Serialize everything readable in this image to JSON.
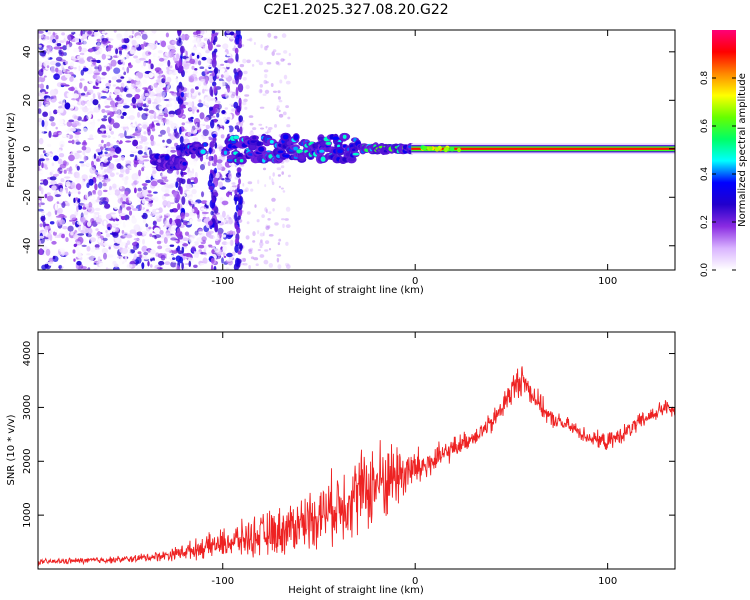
{
  "title": "C2E1.2025.327.08.20.G22",
  "colors": {
    "snr_line": "#ee2222",
    "colorbar_stops": [
      "#ffffff",
      "#d9b3ff",
      "#8a2be2",
      "#2200cc",
      "#0000ff",
      "#00ffff",
      "#00ff66",
      "#66ff00",
      "#ffff00",
      "#ff8800",
      "#ff0000",
      "#ff0077"
    ]
  },
  "chart_data": [
    {
      "type": "heatmap",
      "name": "spectrogram",
      "title": "C2E1.2025.327.08.20.G22",
      "xlabel": "Height of straight line (km)",
      "ylabel": "Frequency (Hz)",
      "xlim": [
        -196,
        135
      ],
      "ylim": [
        -50,
        49
      ],
      "xticks": [
        -100,
        0,
        100
      ],
      "xtick_labels": [
        "-100",
        "0",
        "100"
      ],
      "yticks": [
        -40,
        -20,
        0,
        20,
        40
      ],
      "ytick_labels": [
        "-40",
        "-20",
        "0",
        "20",
        "40"
      ],
      "noise_region_x": [
        -196,
        -95
      ],
      "vertical_streaks_x": [
        -122,
        -105,
        -92
      ],
      "track_segments": [
        {
          "x": [
            -136,
            -120
          ],
          "y": [
            -8,
            -3
          ],
          "amplitude": 0.3
        },
        {
          "x": [
            -118,
            -110
          ],
          "y": [
            -2,
            2
          ],
          "amplitude": 0.4
        },
        {
          "x": [
            -98,
            -30
          ],
          "y": [
            -5,
            5
          ],
          "amplitude": 0.45
        },
        {
          "x": [
            -28,
            -2
          ],
          "y": [
            -1,
            1
          ],
          "amplitude": 0.6
        },
        {
          "x": [
            -2,
            135
          ],
          "y": [
            0,
            0
          ],
          "amplitude": 1.0
        }
      ],
      "colorbar": {
        "label": "Normalized spectral amplitude",
        "range": [
          0,
          1
        ],
        "ticks": [
          0.0,
          0.2,
          0.4,
          0.6,
          0.8
        ],
        "tick_labels": [
          "0.0",
          "0.2",
          "0.4",
          "0.6",
          "0.8"
        ]
      }
    },
    {
      "type": "line",
      "name": "snr",
      "xlabel": "Height of straight line (km)",
      "ylabel": "SNR (10 * v/v)",
      "xlim": [
        -196,
        135
      ],
      "ylim": [
        0,
        4400
      ],
      "xticks": [
        -100,
        0,
        100
      ],
      "xtick_labels": [
        "-100",
        "0",
        "100"
      ],
      "yticks": [
        1000,
        2000,
        3000,
        4000
      ],
      "ytick_labels": [
        "1000",
        "2000",
        "3000",
        "4000"
      ],
      "series": [
        {
          "name": "SNR",
          "trend_x": [
            -196,
            -150,
            -130,
            -110,
            -90,
            -70,
            -50,
            -35,
            -20,
            -10,
            0,
            10,
            20,
            30,
            40,
            50,
            55,
            60,
            70,
            80,
            90,
            100,
            110,
            120,
            130,
            135
          ],
          "trend_y": [
            130,
            180,
            250,
            400,
            550,
            700,
            1000,
            1300,
            1600,
            1750,
            1850,
            2000,
            2250,
            2450,
            2700,
            3300,
            3550,
            3300,
            2800,
            2650,
            2450,
            2350,
            2550,
            2800,
            3000,
            2900
          ],
          "noise_amplitude": [
            60,
            80,
            120,
            250,
            400,
            550,
            700,
            900,
            1000,
            800,
            500,
            350,
            250,
            200,
            250,
            350,
            400,
            300,
            200,
            180,
            180,
            200,
            200,
            200,
            180,
            160
          ]
        }
      ]
    }
  ]
}
